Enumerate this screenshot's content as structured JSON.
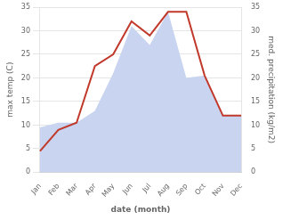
{
  "chart_data": {
    "type": "line",
    "categories": [
      "Jan",
      "Feb",
      "Mar",
      "Apr",
      "May",
      "Jun",
      "Jul",
      "Aug",
      "Sep",
      "Oct",
      "Nov",
      "Dec"
    ],
    "xlabel": "date (month)",
    "ylabel": "max temp (C)",
    "y2label": "med. precipitation (kg/m2)",
    "series": [
      {
        "type": "line",
        "color": "#c0392b",
        "values": [
          4.5,
          9.0,
          10.5,
          22.5,
          25.0,
          32.0,
          29.0,
          34.0,
          34.0,
          20.5,
          12.0,
          12.0
        ]
      },
      {
        "type": "area",
        "color": "#c8d4f0",
        "axis": "y2",
        "values": [
          9.5,
          10.5,
          10.5,
          13.0,
          21.0,
          31.0,
          27.0,
          34.0,
          20.0,
          20.5,
          12.0,
          12.0
        ]
      }
    ],
    "ylim": [
      0,
      35
    ],
    "yticks": [
      0,
      5,
      10,
      15,
      20,
      25,
      30,
      35
    ],
    "y2lim": [
      0,
      35
    ],
    "y2ticks": [
      0,
      5,
      10,
      15,
      20,
      25,
      30,
      35
    ],
    "grid": true
  }
}
